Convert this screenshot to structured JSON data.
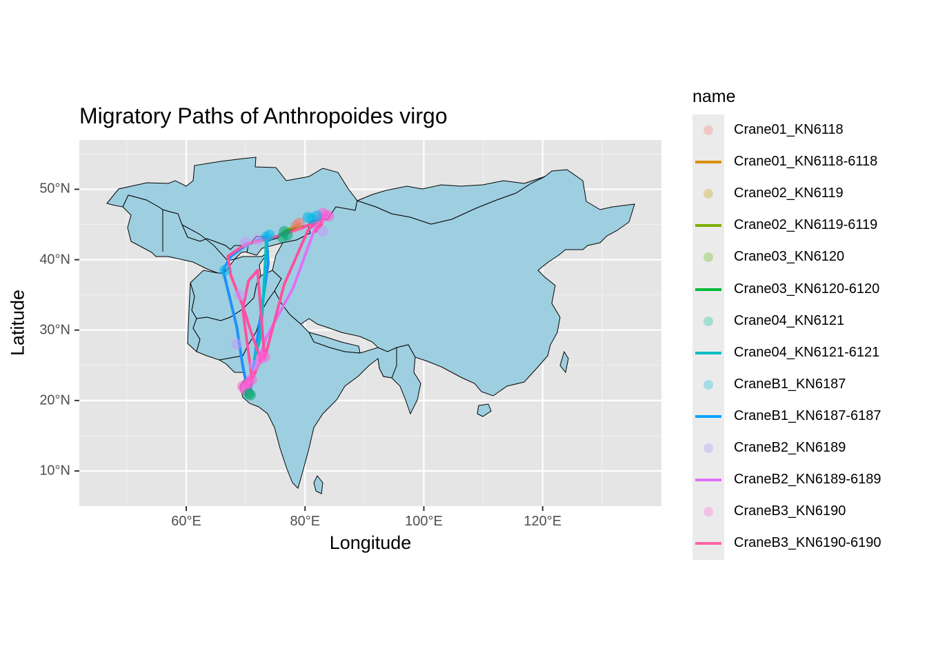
{
  "title": "Migratory Paths of Anthropoides virgo",
  "xlabel": "Longitude",
  "ylabel": "Latitude",
  "x_ticks": [
    {
      "value": 60,
      "label": "60°E"
    },
    {
      "value": 80,
      "label": "80°E"
    },
    {
      "value": 100,
      "label": "100°E"
    },
    {
      "value": 120,
      "label": "120°E"
    }
  ],
  "y_ticks": [
    {
      "value": 10,
      "label": "10°N"
    },
    {
      "value": 20,
      "label": "20°N"
    },
    {
      "value": 30,
      "label": "30°N"
    },
    {
      "value": 40,
      "label": "40°N"
    },
    {
      "value": 50,
      "label": "50°N"
    }
  ],
  "legend": {
    "title": "name",
    "items": [
      {
        "label": "Crane01_KN6118",
        "kind": "point",
        "color": "#f8766d"
      },
      {
        "label": "Crane01_KN6118-6118",
        "kind": "line",
        "color": "#db8e00"
      },
      {
        "label": "Crane02_KN6119",
        "kind": "point",
        "color": "#c49a00"
      },
      {
        "label": "Crane02_KN6119-6119",
        "kind": "line",
        "color": "#7cae00"
      },
      {
        "label": "Crane03_KN6120",
        "kind": "point",
        "color": "#53b400"
      },
      {
        "label": "Crane03_KN6120-6120",
        "kind": "line",
        "color": "#00b938"
      },
      {
        "label": "Crane04_KN6121",
        "kind": "point",
        "color": "#00c094"
      },
      {
        "label": "Crane04_KN6121-6121",
        "kind": "line",
        "color": "#00bfc4"
      },
      {
        "label": "CraneB1_KN6187",
        "kind": "point",
        "color": "#00b6eb"
      },
      {
        "label": "CraneB1_KN6187-6187",
        "kind": "line",
        "color": "#06a4ff"
      },
      {
        "label": "CraneB2_KN6189",
        "kind": "point",
        "color": "#a58aff"
      },
      {
        "label": "CraneB2_KN6189-6189",
        "kind": "line",
        "color": "#df70f8"
      },
      {
        "label": "CraneB3_KN6190",
        "kind": "point",
        "color": "#fb61d7"
      },
      {
        "label": "CraneB3_KN6190-6190",
        "kind": "line",
        "color": "#ff66a8"
      }
    ]
  },
  "chart_data": {
    "type": "scatter",
    "xlim": [
      42,
      140
    ],
    "ylim": [
      5,
      57
    ],
    "grid": true,
    "legend_position": "right",
    "map_fill": "#9ecfe0",
    "panel_background": "#e5e5e5",
    "series": [
      {
        "name": "CraneB1_KN6187-6187",
        "color": "#1e90ff",
        "x": [
          66.2,
          68.5,
          69.5,
          70.2,
          70.8,
          72.0,
          73.8,
          73.5,
          70.0,
          67.5,
          66.2
        ],
        "y": [
          38.5,
          30.5,
          25.0,
          22.0,
          21.5,
          29.0,
          39.5,
          43.3,
          42.0,
          40.5,
          38.5
        ]
      },
      {
        "name": "Crane04_KN6121-6121",
        "color": "#00bfc4",
        "x": [
          73.5,
          73.0,
          72.5,
          71.5
        ],
        "y": [
          43.0,
          35.0,
          29.0,
          26.0
        ]
      },
      {
        "name": "CraneB2_KN6189-6189",
        "color": "#df70f8",
        "x": [
          82.0,
          78.0,
          73.5,
          72.3,
          71.0
        ],
        "y": [
          45.2,
          36.0,
          29.0,
          26.0,
          23.5
        ]
      },
      {
        "name": "Crane02_KN6119-6119",
        "color": "#8fa000",
        "x": [
          76.5,
          79.0
        ],
        "y": [
          44.0,
          45.0
        ]
      },
      {
        "name": "CraneB3_KN6190-6190",
        "color": "#ff4fa0",
        "x": [
          83.5,
          82.0,
          79.5,
          76.0,
          73.0,
          70.0,
          67.0,
          67.5,
          69.5,
          71.0,
          72.5,
          73.0,
          70.5,
          69.5,
          71.0,
          69.5,
          70.5,
          72.0,
          73.2,
          76.5,
          80.5,
          82.5,
          82.8,
          81.8,
          83.5
        ],
        "y": [
          46.5,
          45.5,
          44.5,
          43.5,
          42.8,
          42.2,
          40.5,
          37.8,
          33.5,
          29.5,
          26.0,
          26.5,
          22.0,
          22.2,
          23.5,
          33.0,
          37.0,
          38.5,
          26.0,
          36.5,
          44.2,
          45.8,
          45.0,
          44.0,
          46.5
        ]
      }
    ],
    "points": [
      {
        "name": "CraneB3_KN6190",
        "color": "#fb61d7",
        "x": [
          83.5,
          83.0,
          82.5,
          84.0,
          69.5,
          70.0,
          70.5,
          71.0,
          72.5,
          73.2,
          69.8
        ],
        "y": [
          46.3,
          46.6,
          45.8,
          46.2,
          22.0,
          21.5,
          22.5,
          23.0,
          26.0,
          26.2,
          21.8
        ]
      },
      {
        "name": "CraneB1_KN6187",
        "color": "#00b6eb",
        "x": [
          80.5,
          81.2,
          82.0,
          73.5,
          74.0,
          66.5
        ],
        "y": [
          46.0,
          45.8,
          46.2,
          43.2,
          43.5,
          38.5
        ]
      },
      {
        "name": "Crane03_KN6120",
        "color": "#00a86b",
        "x": [
          76.5,
          77.0,
          76.2,
          70.5,
          70.8
        ],
        "y": [
          44.0,
          43.5,
          43.2,
          21.0,
          20.8
        ]
      },
      {
        "name": "Crane01_KN6118",
        "color": "#f8766d",
        "x": [
          78.5,
          79.0
        ],
        "y": [
          44.8,
          45.2
        ]
      },
      {
        "name": "CraneB2_KN6189",
        "color": "#c59af8",
        "x": [
          70.0,
          69.0,
          72.0,
          71.5,
          68.5,
          83.0
        ],
        "y": [
          42.5,
          35.0,
          42.8,
          25.0,
          28.0,
          44.0
        ]
      }
    ]
  }
}
